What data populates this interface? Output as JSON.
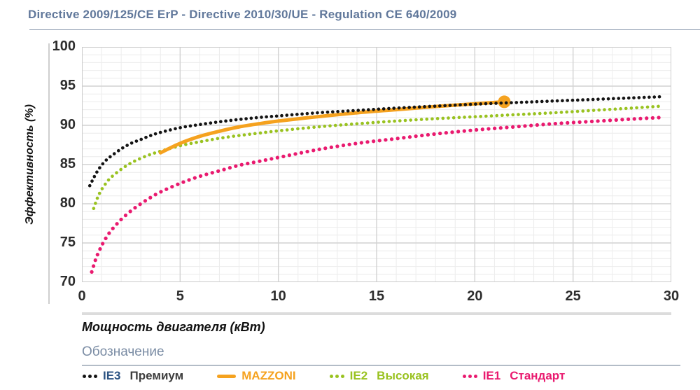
{
  "header": {
    "title": "Directive 2009/125/CE ErP - Directive 2010/30/UE - Regulation CE 640/2009"
  },
  "chart_data": {
    "type": "line",
    "xlabel": "Мощность двигателя (кВт)",
    "ylabel": "Эффективность (%)",
    "xlim": [
      0,
      30
    ],
    "ylim": [
      70,
      100
    ],
    "x_ticks": [
      0,
      5,
      10,
      15,
      20,
      25,
      30
    ],
    "y_ticks": [
      70,
      75,
      80,
      85,
      90,
      95,
      100
    ],
    "grid": {
      "minor_step": 1,
      "major_step": 5,
      "minor_color": "#ececec",
      "major_color": "#d2d2d2",
      "border_color": "#cccccc"
    },
    "series": [
      {
        "name": "IE1 Стандарт",
        "color": "#E91A6F",
        "style": "dotted",
        "dot_size": 5.2,
        "dot_gap": 8.6,
        "points": [
          [
            0.5,
            71.3
          ],
          [
            0.7,
            72.9
          ],
          [
            0.9,
            74.1
          ],
          [
            1.1,
            75.1
          ],
          [
            1.4,
            76.3
          ],
          [
            1.7,
            77.2
          ],
          [
            2,
            78.0
          ],
          [
            2.5,
            79.1
          ],
          [
            3,
            80.0
          ],
          [
            3.5,
            80.8
          ],
          [
            4,
            81.5
          ],
          [
            5,
            82.6
          ],
          [
            6,
            83.5
          ],
          [
            7,
            84.2
          ],
          [
            8,
            84.9
          ],
          [
            9,
            85.4
          ],
          [
            10,
            85.9
          ],
          [
            12,
            86.9
          ],
          [
            14,
            87.7
          ],
          [
            16,
            88.3
          ],
          [
            18,
            88.9
          ],
          [
            20,
            89.4
          ],
          [
            22,
            89.8
          ],
          [
            24,
            90.2
          ],
          [
            26,
            90.5
          ],
          [
            28,
            90.8
          ],
          [
            29.5,
            91.0
          ]
        ]
      },
      {
        "name": "IE2 Высокая",
        "color": "#99C220",
        "style": "dotted",
        "dot_size": 4.6,
        "dot_gap": 7.6,
        "points": [
          [
            0.6,
            79.4
          ],
          [
            0.8,
            80.8
          ],
          [
            1,
            81.8
          ],
          [
            1.25,
            82.7
          ],
          [
            1.5,
            83.4
          ],
          [
            2,
            84.4
          ],
          [
            2.5,
            85.2
          ],
          [
            3,
            85.8
          ],
          [
            3.5,
            86.3
          ],
          [
            4,
            86.7
          ],
          [
            5,
            87.4
          ],
          [
            6,
            87.9
          ],
          [
            7,
            88.35
          ],
          [
            8,
            88.7
          ],
          [
            9,
            89.0
          ],
          [
            10,
            89.3
          ],
          [
            12,
            89.8
          ],
          [
            14,
            90.2
          ],
          [
            16,
            90.55
          ],
          [
            18,
            90.85
          ],
          [
            20,
            91.1
          ],
          [
            22,
            91.35
          ],
          [
            24,
            91.6
          ],
          [
            26,
            91.9
          ],
          [
            28,
            92.2
          ],
          [
            29.5,
            92.45
          ]
        ]
      },
      {
        "name": "MAZZONI",
        "color": "#F5A21F",
        "style": "solid",
        "line_width": 5,
        "end_marker_radius": 9,
        "points": [
          [
            4,
            86.5
          ],
          [
            5,
            87.7
          ],
          [
            6,
            88.6
          ],
          [
            7,
            89.25
          ],
          [
            8,
            89.8
          ],
          [
            9,
            90.2
          ],
          [
            10,
            90.55
          ],
          [
            12,
            91.1
          ],
          [
            14,
            91.6
          ],
          [
            16,
            92.0
          ],
          [
            18,
            92.4
          ],
          [
            20,
            92.75
          ],
          [
            21.5,
            93.0
          ]
        ]
      },
      {
        "name": "IE3 Премиум",
        "color": "#141414",
        "style": "dotted",
        "dot_size": 4.6,
        "dot_gap": 7.2,
        "points": [
          [
            0.4,
            82.3
          ],
          [
            0.6,
            83.3
          ],
          [
            0.8,
            84.2
          ],
          [
            1,
            84.9
          ],
          [
            1.25,
            85.6
          ],
          [
            1.5,
            86.1
          ],
          [
            2,
            87.0
          ],
          [
            2.5,
            87.7
          ],
          [
            3,
            88.2
          ],
          [
            3.5,
            88.7
          ],
          [
            4,
            89.1
          ],
          [
            5,
            89.7
          ],
          [
            6,
            90.1
          ],
          [
            7,
            90.45
          ],
          [
            8,
            90.75
          ],
          [
            9,
            91.0
          ],
          [
            10,
            91.2
          ],
          [
            12,
            91.6
          ],
          [
            14,
            91.9
          ],
          [
            16,
            92.2
          ],
          [
            18,
            92.45
          ],
          [
            20,
            92.7
          ],
          [
            22,
            92.9
          ],
          [
            24,
            93.1
          ],
          [
            26,
            93.3
          ],
          [
            28,
            93.5
          ],
          [
            29.5,
            93.65
          ]
        ]
      }
    ]
  },
  "legend": {
    "heading": "Обозначение",
    "items": [
      {
        "swatch": "dots",
        "swatch_color": "#141414",
        "prefix": "IE3",
        "prefix_color": "#2A5282",
        "label": "Премиум",
        "label_color": "#3d3d3d"
      },
      {
        "swatch": "line",
        "swatch_color": "#F5A21F",
        "prefix": "MAZZONI",
        "prefix_color": "#F5A21F",
        "label": "",
        "label_color": "#F5A21F"
      },
      {
        "swatch": "dots",
        "swatch_color": "#99C220",
        "prefix": "IE2",
        "prefix_color": "#99C220",
        "label": "Высокая",
        "label_color": "#99C220"
      },
      {
        "swatch": "dots",
        "swatch_color": "#E91A6F",
        "prefix": "IE1",
        "prefix_color": "#E91A6F",
        "label": "Стандарт",
        "label_color": "#E91A6F"
      }
    ]
  }
}
